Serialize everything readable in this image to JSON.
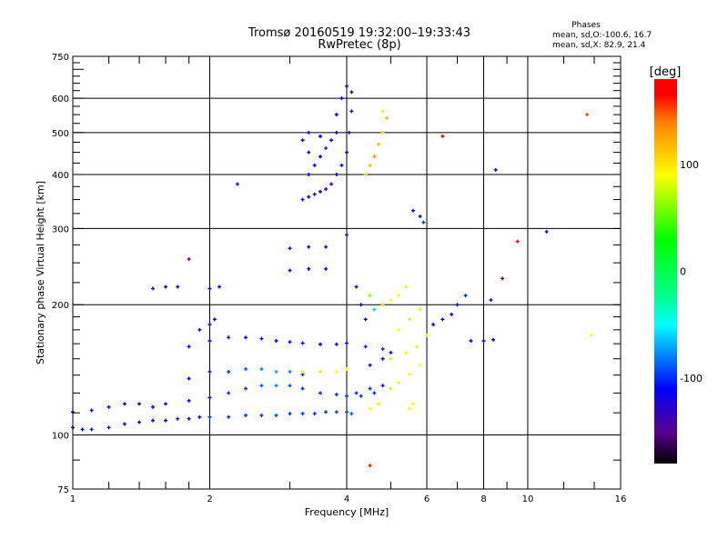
{
  "chart_data": {
    "type": "scatter",
    "title": "Tromsø 20160519 19:32:00–19:33:43",
    "subtitle": "RwPretec (8p)",
    "xlabel": "Frequency [MHz]",
    "ylabel": "Stationary phase Virtual Height [km]",
    "xscale": "log",
    "yscale": "log",
    "xlim": [
      1,
      16
    ],
    "ylim": [
      75,
      750
    ],
    "xticks": [
      "1",
      "2",
      "4",
      "6",
      "8",
      "10",
      "16"
    ],
    "xtick_values": [
      1,
      2,
      4,
      6,
      8,
      10,
      16
    ],
    "yticks": [
      "75",
      "100",
      "200",
      "300",
      "400",
      "500",
      "600",
      "750"
    ],
    "ytick_values": [
      75,
      100,
      200,
      300,
      400,
      500,
      600,
      750
    ],
    "grid": true,
    "legend": {
      "title": "Phases",
      "line1": "mean, sd,O:-100.6, 16.7",
      "line2": "mean, sd,X:  82.9, 21.4",
      "placement": "top-right"
    },
    "colorbar": {
      "label": "[deg]",
      "range": [
        -180,
        180
      ],
      "ticks": [
        "100",
        "0",
        "-100"
      ],
      "tick_values": [
        100,
        0,
        -100
      ],
      "stops": [
        [
          -180,
          "#000000"
        ],
        [
          -150,
          "#5a0090"
        ],
        [
          -110,
          "#0000ff"
        ],
        [
          -50,
          "#00ffff"
        ],
        [
          -20,
          "#00ff80"
        ],
        [
          30,
          "#00ff00"
        ],
        [
          90,
          "#ffff00"
        ],
        [
          140,
          "#ff8000"
        ],
        [
          165,
          "#ff0000"
        ],
        [
          180,
          "#ff0000"
        ]
      ]
    },
    "point_format": [
      "frequency_MHz",
      "height_km",
      "phase_deg"
    ],
    "points": [
      [
        1.0,
        104,
        -110
      ],
      [
        1.05,
        103,
        -110
      ],
      [
        1.1,
        103,
        -105
      ],
      [
        1.2,
        104,
        -110
      ],
      [
        1.3,
        106,
        -110
      ],
      [
        1.4,
        107,
        -110
      ],
      [
        1.5,
        108,
        -110
      ],
      [
        1.6,
        108,
        -110
      ],
      [
        1.7,
        109,
        -105
      ],
      [
        1.8,
        109,
        -110
      ],
      [
        1.9,
        110,
        -110
      ],
      [
        2.0,
        110,
        -100
      ],
      [
        2.2,
        110,
        -100
      ],
      [
        2.4,
        111,
        -100
      ],
      [
        2.6,
        111,
        -100
      ],
      [
        2.8,
        111,
        -95
      ],
      [
        3.0,
        112,
        -100
      ],
      [
        3.2,
        112,
        -100
      ],
      [
        3.4,
        112,
        -100
      ],
      [
        3.6,
        113,
        -100
      ],
      [
        3.8,
        113,
        -95
      ],
      [
        4.0,
        113,
        -95
      ],
      [
        4.1,
        112,
        -90
      ],
      [
        1.0,
        113,
        -110
      ],
      [
        1.1,
        114,
        -110
      ],
      [
        1.2,
        116,
        -110
      ],
      [
        1.3,
        118,
        -110
      ],
      [
        1.4,
        118,
        -110
      ],
      [
        1.5,
        116,
        -110
      ],
      [
        1.6,
        118,
        -120
      ],
      [
        1.8,
        120,
        -110
      ],
      [
        2.0,
        122,
        -110
      ],
      [
        2.2,
        125,
        -100
      ],
      [
        2.4,
        128,
        -100
      ],
      [
        2.6,
        130,
        -90
      ],
      [
        2.8,
        130,
        -80
      ],
      [
        3.0,
        130,
        -90
      ],
      [
        3.2,
        128,
        -100
      ],
      [
        3.5,
        125,
        -100
      ],
      [
        3.8,
        124,
        -100
      ],
      [
        4.0,
        123,
        -100
      ],
      [
        4.3,
        123,
        -100
      ],
      [
        4.6,
        125,
        -100
      ],
      [
        1.8,
        135,
        -110
      ],
      [
        2.0,
        140,
        -110
      ],
      [
        2.2,
        140,
        -100
      ],
      [
        2.4,
        142,
        -90
      ],
      [
        2.6,
        142,
        -80
      ],
      [
        2.8,
        140,
        -70
      ],
      [
        3.0,
        140,
        -80
      ],
      [
        3.2,
        138,
        -100
      ],
      [
        1.8,
        160,
        -110
      ],
      [
        2.0,
        165,
        -110
      ],
      [
        2.2,
        168,
        -110
      ],
      [
        2.4,
        168,
        -110
      ],
      [
        2.6,
        167,
        -110
      ],
      [
        2.8,
        165,
        -110
      ],
      [
        3.0,
        164,
        -110
      ],
      [
        3.2,
        163,
        -110
      ],
      [
        3.5,
        162,
        -110
      ],
      [
        3.8,
        162,
        -110
      ],
      [
        4.0,
        163,
        -110
      ],
      [
        4.4,
        160,
        -100
      ],
      [
        4.8,
        158,
        -100
      ],
      [
        2.0,
        180,
        -110
      ],
      [
        2.05,
        185,
        -110
      ],
      [
        1.9,
        175,
        -110
      ],
      [
        3.2,
        140,
        100
      ],
      [
        3.5,
        140,
        100
      ],
      [
        3.8,
        140,
        90
      ],
      [
        4.0,
        142,
        90
      ],
      [
        4.5,
        115,
        90
      ],
      [
        4.7,
        118,
        100
      ],
      [
        5.0,
        128,
        100
      ],
      [
        5.2,
        132,
        95
      ],
      [
        5.5,
        138,
        90
      ],
      [
        5.8,
        145,
        90
      ],
      [
        5.5,
        115,
        90
      ],
      [
        5.6,
        118,
        90
      ],
      [
        5.0,
        150,
        100
      ],
      [
        5.4,
        155,
        90
      ],
      [
        5.7,
        160,
        80
      ],
      [
        6.0,
        170,
        80
      ],
      [
        5.2,
        175,
        90
      ],
      [
        5.5,
        185,
        80
      ],
      [
        5.8,
        195,
        80
      ],
      [
        4.8,
        200,
        110
      ],
      [
        5.0,
        205,
        90
      ],
      [
        5.2,
        210,
        90
      ],
      [
        5.4,
        220,
        80
      ],
      [
        4.2,
        125,
        -100
      ],
      [
        4.5,
        128,
        -100
      ],
      [
        4.8,
        130,
        -110
      ],
      [
        4.5,
        145,
        -110
      ],
      [
        4.8,
        150,
        -110
      ],
      [
        5.0,
        155,
        -110
      ],
      [
        3.2,
        350,
        -110
      ],
      [
        3.3,
        355,
        -110
      ],
      [
        3.4,
        360,
        -110
      ],
      [
        3.5,
        365,
        -110
      ],
      [
        3.6,
        370,
        -110
      ],
      [
        3.7,
        380,
        -110
      ],
      [
        3.8,
        400,
        -110
      ],
      [
        3.9,
        420,
        -110
      ],
      [
        4.0,
        450,
        -110
      ],
      [
        4.05,
        500,
        -110
      ],
      [
        4.1,
        560,
        -110
      ],
      [
        4.1,
        620,
        -110
      ],
      [
        4.0,
        640,
        -110
      ],
      [
        3.3,
        400,
        -110
      ],
      [
        3.4,
        420,
        -110
      ],
      [
        3.5,
        440,
        -110
      ],
      [
        3.6,
        460,
        -100
      ],
      [
        3.7,
        480,
        -110
      ],
      [
        3.8,
        500,
        -110
      ],
      [
        3.3,
        450,
        -110
      ],
      [
        3.5,
        490,
        -110
      ],
      [
        3.8,
        550,
        -110
      ],
      [
        3.9,
        600,
        -110
      ],
      [
        3.2,
        480,
        -110
      ],
      [
        3.3,
        500,
        -110
      ],
      [
        4.5,
        420,
        120
      ],
      [
        4.6,
        440,
        130
      ],
      [
        4.7,
        470,
        120
      ],
      [
        4.8,
        500,
        110
      ],
      [
        4.9,
        540,
        120
      ],
      [
        4.8,
        560,
        100
      ],
      [
        4.4,
        400,
        110
      ],
      [
        1.5,
        218,
        -110
      ],
      [
        1.6,
        220,
        -110
      ],
      [
        1.7,
        220,
        -110
      ],
      [
        2.0,
        218,
        -110
      ],
      [
        2.1,
        220,
        -110
      ],
      [
        3.0,
        240,
        -110
      ],
      [
        3.3,
        242,
        -110
      ],
      [
        3.6,
        242,
        -110
      ],
      [
        3.0,
        270,
        -110
      ],
      [
        3.3,
        272,
        -110
      ],
      [
        3.6,
        272,
        -110
      ],
      [
        5.6,
        330,
        -110
      ],
      [
        5.8,
        320,
        -110
      ],
      [
        5.9,
        310,
        -100
      ],
      [
        6.2,
        180,
        -110
      ],
      [
        6.5,
        185,
        -110
      ],
      [
        6.8,
        190,
        -110
      ],
      [
        7.0,
        200,
        -110
      ],
      [
        7.3,
        210,
        -100
      ],
      [
        7.5,
        165,
        -110
      ],
      [
        8.0,
        165,
        -110
      ],
      [
        8.4,
        166,
        -110
      ],
      [
        8.3,
        205,
        -130
      ],
      [
        8.8,
        230,
        -150
      ],
      [
        9.5,
        280,
        170
      ],
      [
        11.0,
        295,
        -130
      ],
      [
        13.5,
        550,
        150
      ],
      [
        13.8,
        170,
        90
      ],
      [
        8.5,
        410,
        -120
      ],
      [
        4.5,
        85,
        160
      ],
      [
        4.2,
        220,
        -110
      ],
      [
        4.3,
        200,
        -110
      ],
      [
        4.4,
        185,
        -110
      ],
      [
        4.5,
        210,
        60
      ],
      [
        4.6,
        195,
        -20
      ],
      [
        4.0,
        290,
        -130
      ],
      [
        6.5,
        490,
        170
      ],
      [
        2.3,
        380,
        -140
      ],
      [
        1.8,
        255,
        -150
      ]
    ]
  }
}
